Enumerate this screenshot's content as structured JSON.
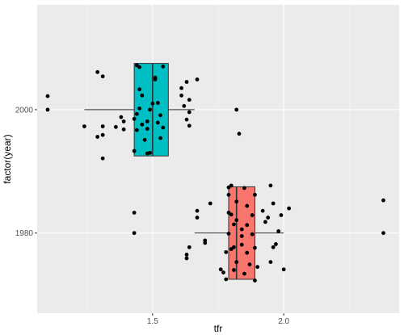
{
  "chart_data": {
    "type": "boxplot",
    "xlabel": "tfr",
    "ylabel": "factor(year)",
    "x_range": [
      1.06,
      2.44
    ],
    "x_ticks": [
      1.5,
      2.0
    ],
    "x_tick_labels": [
      "1.5",
      "2.0"
    ],
    "y_ticks": [
      1980,
      2000
    ],
    "y_tick_labels": [
      "1980",
      "2000"
    ],
    "y_range": [
      1967,
      2017
    ],
    "grid": true,
    "legend": "none",
    "colors": {
      "panel_background": "#ebebeb",
      "grid_major": "#ffffff",
      "grid_minor": "#f4f4f4",
      "box_1980": "#f8766d",
      "box_2000": "#00bfc4",
      "outline": "#333333",
      "points": "#000000"
    },
    "boxes": [
      {
        "group": "2000",
        "center_y": 2000,
        "min": 1.24,
        "q1": 1.43,
        "median": 1.5,
        "q3": 1.56,
        "max": 1.66,
        "half_height": 7.5
      },
      {
        "group": "1980",
        "center_y": 1980,
        "min": 1.66,
        "q1": 1.79,
        "median": 1.82,
        "q3": 1.89,
        "max": 2.0,
        "half_height": 7.5
      }
    ],
    "points": [
      {
        "x": 1.1,
        "y": 2002.2
      },
      {
        "x": 1.1,
        "y": 2000.0
      },
      {
        "x": 1.29,
        "y": 2006.1
      },
      {
        "x": 1.31,
        "y": 2005.4
      },
      {
        "x": 1.24,
        "y": 1997.3
      },
      {
        "x": 1.29,
        "y": 1995.6
      },
      {
        "x": 1.31,
        "y": 1995.9
      },
      {
        "x": 1.31,
        "y": 1997.3
      },
      {
        "x": 1.31,
        "y": 1992.1
      },
      {
        "x": 1.36,
        "y": 1997.2
      },
      {
        "x": 1.38,
        "y": 1998.8
      },
      {
        "x": 1.39,
        "y": 1998.1
      },
      {
        "x": 1.39,
        "y": 1996.8
      },
      {
        "x": 1.43,
        "y": 1993.3
      },
      {
        "x": 1.44,
        "y": 2007.2
      },
      {
        "x": 1.45,
        "y": 2006.9
      },
      {
        "x": 1.45,
        "y": 2003.3
      },
      {
        "x": 1.46,
        "y": 2002.3
      },
      {
        "x": 1.45,
        "y": 2000.2
      },
      {
        "x": 1.44,
        "y": 1999.3
      },
      {
        "x": 1.43,
        "y": 1998.5
      },
      {
        "x": 1.46,
        "y": 1997.6
      },
      {
        "x": 1.44,
        "y": 1996.7
      },
      {
        "x": 1.48,
        "y": 1996.9
      },
      {
        "x": 1.47,
        "y": 1995.1
      },
      {
        "x": 1.49,
        "y": 1993.0
      },
      {
        "x": 1.48,
        "y": 1992.9
      },
      {
        "x": 1.48,
        "y": 1998.1
      },
      {
        "x": 1.49,
        "y": 2000.0
      },
      {
        "x": 1.5,
        "y": 2001.0
      },
      {
        "x": 1.51,
        "y": 2004.9
      },
      {
        "x": 1.51,
        "y": 2005.2
      },
      {
        "x": 1.52,
        "y": 2001.1
      },
      {
        "x": 1.53,
        "y": 1999.1
      },
      {
        "x": 1.52,
        "y": 1997.9
      },
      {
        "x": 1.54,
        "y": 1997.1
      },
      {
        "x": 1.53,
        "y": 1995.4
      },
      {
        "x": 1.54,
        "y": 2007.0
      },
      {
        "x": 1.61,
        "y": 2003.5
      },
      {
        "x": 1.61,
        "y": 2002.3
      },
      {
        "x": 1.62,
        "y": 2000.6
      },
      {
        "x": 1.63,
        "y": 2004.5
      },
      {
        "x": 1.64,
        "y": 2001.6
      },
      {
        "x": 1.64,
        "y": 1999.6
      },
      {
        "x": 1.63,
        "y": 1998.4
      },
      {
        "x": 1.64,
        "y": 1997.4
      },
      {
        "x": 1.67,
        "y": 2004.9
      },
      {
        "x": 1.82,
        "y": 2000.0
      },
      {
        "x": 1.83,
        "y": 1996.1
      },
      {
        "x": 1.43,
        "y": 1983.3
      },
      {
        "x": 1.43,
        "y": 1980.0
      },
      {
        "x": 1.63,
        "y": 1975.9
      },
      {
        "x": 1.63,
        "y": 1976.5
      },
      {
        "x": 1.64,
        "y": 1977.7
      },
      {
        "x": 1.67,
        "y": 1983.6
      },
      {
        "x": 1.67,
        "y": 1982.5
      },
      {
        "x": 1.7,
        "y": 1978.8
      },
      {
        "x": 1.7,
        "y": 1978.4
      },
      {
        "x": 1.72,
        "y": 1984.8
      },
      {
        "x": 1.76,
        "y": 1974.1
      },
      {
        "x": 1.78,
        "y": 1972.5
      },
      {
        "x": 1.77,
        "y": 1973.6
      },
      {
        "x": 1.78,
        "y": 1976.9
      },
      {
        "x": 1.79,
        "y": 1979.9
      },
      {
        "x": 1.79,
        "y": 1983.3
      },
      {
        "x": 1.79,
        "y": 1986.2
      },
      {
        "x": 1.79,
        "y": 1987.4
      },
      {
        "x": 1.8,
        "y": 1987.7
      },
      {
        "x": 1.8,
        "y": 1983.0
      },
      {
        "x": 1.8,
        "y": 1977.4
      },
      {
        "x": 1.81,
        "y": 1977.7
      },
      {
        "x": 1.81,
        "y": 1974.0
      },
      {
        "x": 1.81,
        "y": 1981.4
      },
      {
        "x": 1.82,
        "y": 1985.1
      },
      {
        "x": 1.82,
        "y": 1982.1
      },
      {
        "x": 1.82,
        "y": 1975.3
      },
      {
        "x": 1.84,
        "y": 1979.5
      },
      {
        "x": 1.84,
        "y": 1978.1
      },
      {
        "x": 1.84,
        "y": 1980.6
      },
      {
        "x": 1.85,
        "y": 1987.3
      },
      {
        "x": 1.85,
        "y": 1973.4
      },
      {
        "x": 1.86,
        "y": 1984.4
      },
      {
        "x": 1.86,
        "y": 1981.3
      },
      {
        "x": 1.86,
        "y": 1976.8
      },
      {
        "x": 1.87,
        "y": 1974.9
      },
      {
        "x": 1.88,
        "y": 1982.9
      },
      {
        "x": 1.88,
        "y": 1979.8
      },
      {
        "x": 1.89,
        "y": 1986.2
      },
      {
        "x": 1.89,
        "y": 1977.6
      },
      {
        "x": 1.89,
        "y": 1972.3
      },
      {
        "x": 1.9,
        "y": 1974.5
      },
      {
        "x": 1.92,
        "y": 1983.6
      },
      {
        "x": 1.93,
        "y": 1981.8
      },
      {
        "x": 1.94,
        "y": 1982.5
      },
      {
        "x": 1.95,
        "y": 1975.3
      },
      {
        "x": 1.95,
        "y": 1987.7
      },
      {
        "x": 1.96,
        "y": 1984.8
      },
      {
        "x": 1.96,
        "y": 1977.7
      },
      {
        "x": 1.97,
        "y": 1978.2
      },
      {
        "x": 1.98,
        "y": 1980.3
      },
      {
        "x": 1.99,
        "y": 1982.9
      },
      {
        "x": 2.0,
        "y": 1974.1
      },
      {
        "x": 2.02,
        "y": 1984.0
      },
      {
        "x": 2.38,
        "y": 1985.3
      },
      {
        "x": 2.38,
        "y": 1980.0
      }
    ]
  }
}
